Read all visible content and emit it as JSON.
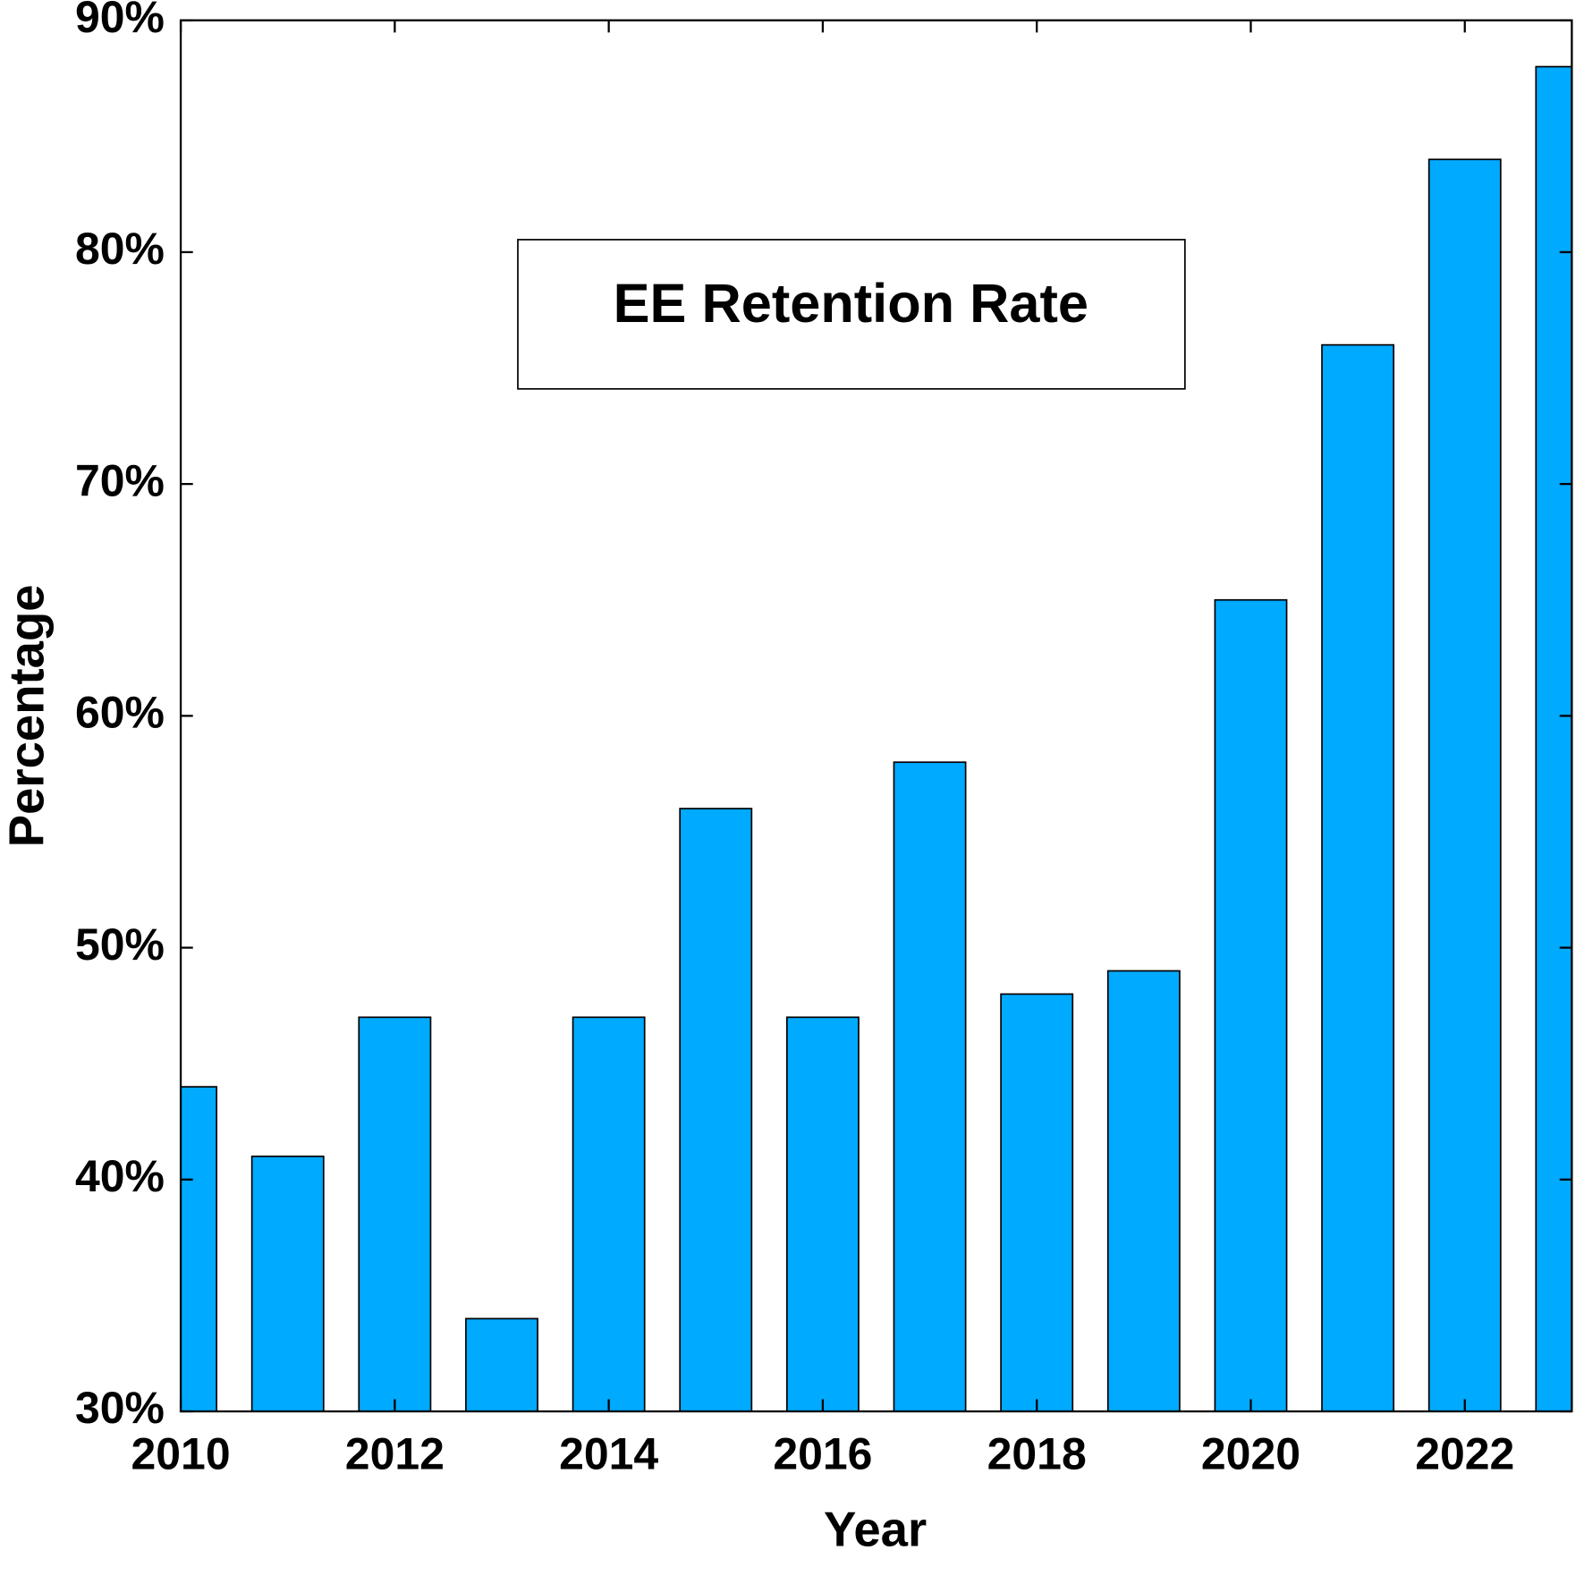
{
  "chart_data": {
    "type": "bar",
    "title": "EE Retention Rate",
    "x_label": "Year",
    "y_label": "Percentage",
    "x": [
      2010,
      2011,
      2012,
      2013,
      2014,
      2015,
      2016,
      2017,
      2018,
      2019,
      2020,
      2021,
      2022,
      2023
    ],
    "values": [
      44,
      41,
      47,
      34,
      47,
      56,
      47,
      58,
      48,
      49,
      65,
      76,
      84,
      88
    ],
    "color": "#00aaff",
    "xlim": [
      2010,
      2023
    ],
    "xticks": [
      2010,
      2012,
      2014,
      2016,
      2018,
      2020,
      2022
    ],
    "ylim": [
      30,
      90
    ],
    "yticks": [
      {
        "value": 30,
        "label": "30%"
      },
      {
        "value": 40,
        "label": "40%"
      },
      {
        "value": 50,
        "label": "50%"
      },
      {
        "value": 60,
        "label": "60%"
      },
      {
        "value": 70,
        "label": "70%"
      },
      {
        "value": 80,
        "label": "80%"
      },
      {
        "value": 90,
        "label": "90%"
      }
    ],
    "grid": false
  }
}
